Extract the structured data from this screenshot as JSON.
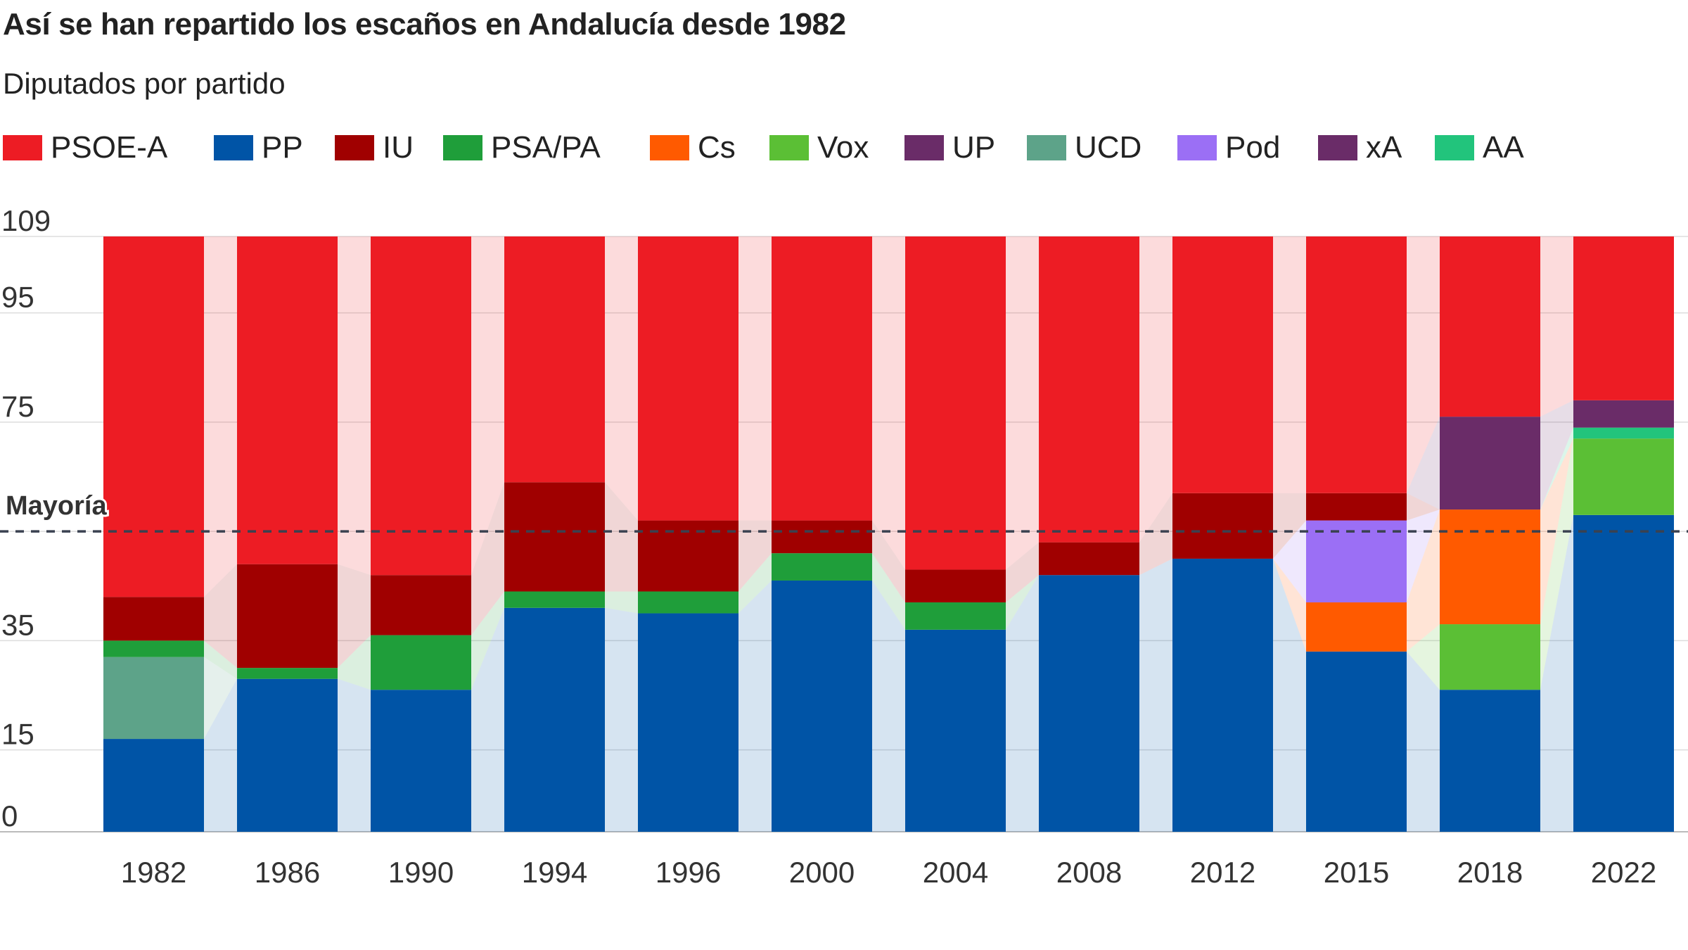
{
  "title": "Así se han repartido los escaños en Andalucía desde 1982",
  "subtitle": "Diputados por partido",
  "majority_label": "Mayoría",
  "colors": {
    "PSOE-A": "#ed1c24",
    "PP": "#0054a6",
    "IU": "#a00000",
    "PSA/PA": "#1f9e3a",
    "Cs": "#ff5a00",
    "Vox": "#5bbf35",
    "UP": "#6a2c68",
    "UCD": "#5da389",
    "Pod": "#9b6ff5",
    "xA": "#6a2c68",
    "AA": "#22c47c"
  },
  "chart_data": {
    "type": "bar",
    "stacked": true,
    "categories": [
      "1982",
      "1986",
      "1990",
      "1994",
      "1996",
      "2000",
      "2004",
      "2008",
      "2012",
      "2015",
      "2018",
      "2022"
    ],
    "series": [
      {
        "name": "PP",
        "values": [
          17,
          28,
          26,
          41,
          40,
          46,
          37,
          47,
          50,
          33,
          26,
          58
        ]
      },
      {
        "name": "UCD",
        "values": [
          15,
          0,
          0,
          0,
          0,
          0,
          0,
          0,
          0,
          0,
          0,
          0
        ]
      },
      {
        "name": "PSA/PA",
        "values": [
          3,
          2,
          10,
          3,
          4,
          5,
          5,
          0,
          0,
          0,
          0,
          0
        ]
      },
      {
        "name": "Vox",
        "values": [
          0,
          0,
          0,
          0,
          0,
          0,
          0,
          0,
          0,
          0,
          12,
          14
        ]
      },
      {
        "name": "Cs",
        "values": [
          0,
          0,
          0,
          0,
          0,
          0,
          0,
          0,
          0,
          9,
          21,
          0
        ]
      },
      {
        "name": "AA",
        "values": [
          0,
          0,
          0,
          0,
          0,
          0,
          0,
          0,
          0,
          0,
          0,
          2
        ]
      },
      {
        "name": "Pod",
        "values": [
          0,
          0,
          0,
          0,
          0,
          0,
          0,
          0,
          0,
          15,
          0,
          0
        ]
      },
      {
        "name": "IU",
        "values": [
          8,
          19,
          11,
          20,
          13,
          6,
          6,
          6,
          12,
          5,
          0,
          0
        ]
      },
      {
        "name": "UP",
        "values": [
          0,
          0,
          0,
          0,
          0,
          0,
          0,
          0,
          0,
          0,
          17,
          0
        ]
      },
      {
        "name": "xA",
        "values": [
          0,
          0,
          0,
          0,
          0,
          0,
          0,
          0,
          0,
          0,
          0,
          5
        ]
      },
      {
        "name": "PSOE-A",
        "values": [
          66,
          60,
          62,
          45,
          52,
          52,
          61,
          56,
          47,
          47,
          33,
          30
        ]
      }
    ],
    "legend": [
      "PSOE-A",
      "PP",
      "IU",
      "PSA/PA",
      "Cs",
      "Vox",
      "UP",
      "UCD",
      "Pod",
      "xA",
      "AA"
    ],
    "legend_position": "top",
    "yticks": [
      0,
      15,
      35,
      55,
      75,
      95,
      109
    ],
    "ytick_labels": [
      "0",
      "15",
      "35",
      "",
      "75",
      "95",
      "109"
    ],
    "ylim": [
      0,
      109
    ],
    "majority": 55,
    "grid": true
  }
}
